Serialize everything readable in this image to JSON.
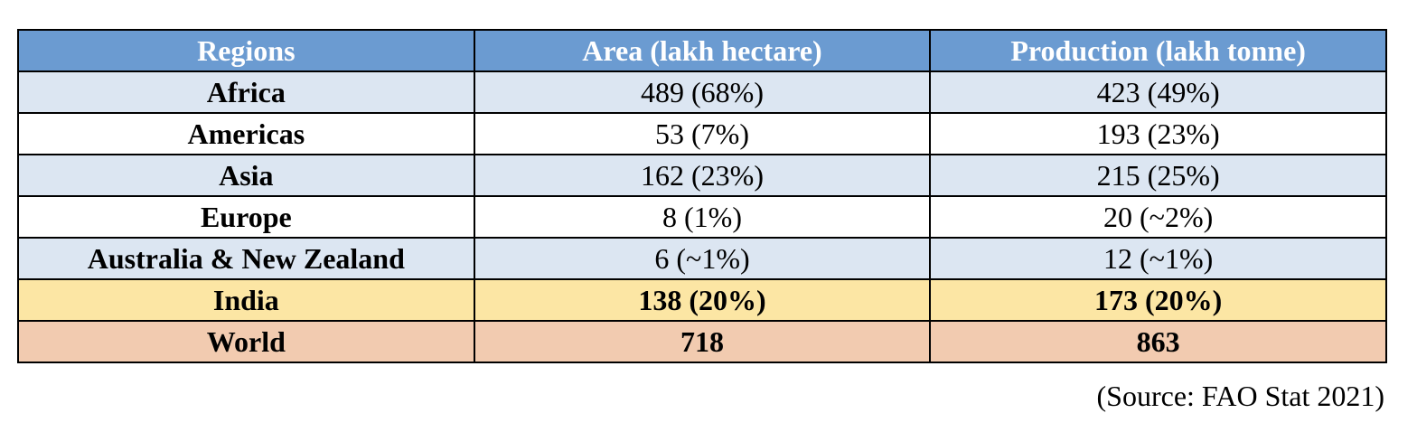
{
  "table": {
    "header": [
      "Regions",
      "Area (lakh hectare)",
      "Production (lakh tonne)"
    ],
    "rows": [
      [
        "Africa",
        "489 (68%)",
        "423 (49%)"
      ],
      [
        "Americas",
        "53 (7%)",
        "193 (23%)"
      ],
      [
        "Asia",
        "162 (23%)",
        "215 (25%)"
      ],
      [
        "Europe",
        "8 (1%)",
        "20 (~2%)"
      ],
      [
        "Australia & New Zealand",
        "6 (~1%)",
        "12 (~1%)"
      ],
      [
        "India",
        "138 (20%)",
        "173 (20%)"
      ],
      [
        "World",
        "718",
        "863"
      ]
    ]
  },
  "source": "(Source: FAO Stat 2021)"
}
